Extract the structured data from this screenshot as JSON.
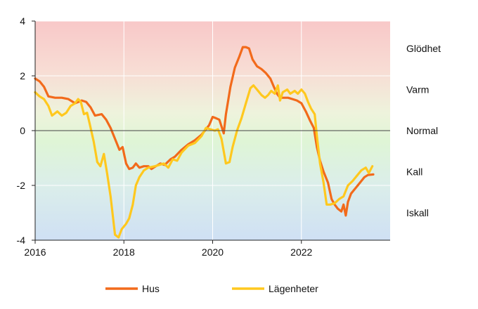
{
  "chart_data": {
    "type": "line",
    "xlim": [
      2016,
      2024
    ],
    "ylim": [
      -4,
      4
    ],
    "x_ticks": [
      "2016",
      "2018",
      "2020",
      "2022"
    ],
    "x_tick_values": [
      2016,
      2018,
      2020,
      2022
    ],
    "y_ticks": [
      "4",
      "2",
      "0",
      "-2",
      "-4"
    ],
    "y_tick_values": [
      4,
      2,
      0,
      -2,
      -4
    ],
    "grid": true,
    "legend_position": "bottom",
    "background_gradient": {
      "top": "#f8c8c8",
      "middle": "#dff5d6",
      "bottom": "#cfe0f4"
    },
    "zone_labels": [
      {
        "text": "Glödhet",
        "y": 3
      },
      {
        "text": "Varm",
        "y": 1.5
      },
      {
        "text": "Normal",
        "y": 0
      },
      {
        "text": "Kall",
        "y": -1.5
      },
      {
        "text": "Iskall",
        "y": -3
      }
    ],
    "series": [
      {
        "name": "Hus",
        "color": "#f26a1b",
        "points": [
          [
            2016.0,
            1.9
          ],
          [
            2016.1,
            1.8
          ],
          [
            2016.2,
            1.6
          ],
          [
            2016.3,
            1.25
          ],
          [
            2016.45,
            1.2
          ],
          [
            2016.6,
            1.2
          ],
          [
            2016.75,
            1.15
          ],
          [
            2016.9,
            1.0
          ],
          [
            2017.05,
            1.1
          ],
          [
            2017.15,
            1.05
          ],
          [
            2017.25,
            0.85
          ],
          [
            2017.35,
            0.55
          ],
          [
            2017.5,
            0.6
          ],
          [
            2017.6,
            0.4
          ],
          [
            2017.7,
            0.1
          ],
          [
            2017.8,
            -0.3
          ],
          [
            2017.9,
            -0.7
          ],
          [
            2017.97,
            -0.6
          ],
          [
            2018.05,
            -1.2
          ],
          [
            2018.12,
            -1.4
          ],
          [
            2018.2,
            -1.35
          ],
          [
            2018.27,
            -1.2
          ],
          [
            2018.35,
            -1.35
          ],
          [
            2018.45,
            -1.3
          ],
          [
            2018.55,
            -1.3
          ],
          [
            2018.62,
            -1.4
          ],
          [
            2018.72,
            -1.3
          ],
          [
            2018.82,
            -1.2
          ],
          [
            2018.92,
            -1.25
          ],
          [
            2019.05,
            -1.05
          ],
          [
            2019.15,
            -0.95
          ],
          [
            2019.3,
            -0.7
          ],
          [
            2019.45,
            -0.5
          ],
          [
            2019.6,
            -0.35
          ],
          [
            2019.75,
            -0.15
          ],
          [
            2019.85,
            0.05
          ],
          [
            2019.92,
            0.2
          ],
          [
            2020.0,
            0.5
          ],
          [
            2020.08,
            0.45
          ],
          [
            2020.15,
            0.4
          ],
          [
            2020.25,
            -0.1
          ],
          [
            2020.3,
            0.6
          ],
          [
            2020.4,
            1.6
          ],
          [
            2020.5,
            2.3
          ],
          [
            2020.6,
            2.7
          ],
          [
            2020.68,
            3.05
          ],
          [
            2020.75,
            3.05
          ],
          [
            2020.82,
            3.0
          ],
          [
            2020.9,
            2.6
          ],
          [
            2021.0,
            2.35
          ],
          [
            2021.1,
            2.25
          ],
          [
            2021.2,
            2.1
          ],
          [
            2021.3,
            1.9
          ],
          [
            2021.38,
            1.6
          ],
          [
            2021.45,
            1.35
          ],
          [
            2021.52,
            1.2
          ],
          [
            2021.6,
            1.2
          ],
          [
            2021.7,
            1.2
          ],
          [
            2021.8,
            1.15
          ],
          [
            2021.9,
            1.1
          ],
          [
            2022.0,
            1.0
          ],
          [
            2022.1,
            0.7
          ],
          [
            2022.2,
            0.35
          ],
          [
            2022.28,
            0.1
          ],
          [
            2022.35,
            -0.6
          ],
          [
            2022.42,
            -1.1
          ],
          [
            2022.5,
            -1.5
          ],
          [
            2022.6,
            -1.9
          ],
          [
            2022.68,
            -2.5
          ],
          [
            2022.75,
            -2.7
          ],
          [
            2022.82,
            -2.85
          ],
          [
            2022.9,
            -2.95
          ],
          [
            2022.95,
            -2.7
          ],
          [
            2023.0,
            -3.1
          ],
          [
            2023.05,
            -2.6
          ],
          [
            2023.12,
            -2.3
          ],
          [
            2023.22,
            -2.1
          ],
          [
            2023.32,
            -1.9
          ],
          [
            2023.42,
            -1.7
          ],
          [
            2023.5,
            -1.62
          ],
          [
            2023.62,
            -1.6
          ]
        ]
      },
      {
        "name": "Lägenheter",
        "color": "#ffc81e",
        "points": [
          [
            2016.0,
            1.4
          ],
          [
            2016.1,
            1.25
          ],
          [
            2016.2,
            1.15
          ],
          [
            2016.3,
            0.9
          ],
          [
            2016.38,
            0.55
          ],
          [
            2016.5,
            0.7
          ],
          [
            2016.6,
            0.55
          ],
          [
            2016.7,
            0.65
          ],
          [
            2016.8,
            0.9
          ],
          [
            2016.9,
            1.0
          ],
          [
            2016.97,
            1.15
          ],
          [
            2017.03,
            1.05
          ],
          [
            2017.1,
            0.6
          ],
          [
            2017.17,
            0.65
          ],
          [
            2017.23,
            0.25
          ],
          [
            2017.32,
            -0.4
          ],
          [
            2017.4,
            -1.15
          ],
          [
            2017.47,
            -1.3
          ],
          [
            2017.55,
            -0.85
          ],
          [
            2017.62,
            -1.55
          ],
          [
            2017.7,
            -2.4
          ],
          [
            2017.8,
            -3.8
          ],
          [
            2017.88,
            -3.9
          ],
          [
            2017.95,
            -3.6
          ],
          [
            2018.05,
            -3.4
          ],
          [
            2018.12,
            -3.2
          ],
          [
            2018.2,
            -2.7
          ],
          [
            2018.27,
            -2.0
          ],
          [
            2018.35,
            -1.7
          ],
          [
            2018.45,
            -1.45
          ],
          [
            2018.55,
            -1.35
          ],
          [
            2018.7,
            -1.3
          ],
          [
            2018.8,
            -1.25
          ],
          [
            2018.9,
            -1.2
          ],
          [
            2019.0,
            -1.35
          ],
          [
            2019.1,
            -1.05
          ],
          [
            2019.2,
            -1.1
          ],
          [
            2019.3,
            -0.8
          ],
          [
            2019.45,
            -0.55
          ],
          [
            2019.6,
            -0.45
          ],
          [
            2019.75,
            -0.2
          ],
          [
            2019.85,
            0.1
          ],
          [
            2019.95,
            0.05
          ],
          [
            2020.05,
            0.0
          ],
          [
            2020.12,
            0.05
          ],
          [
            2020.2,
            -0.3
          ],
          [
            2020.3,
            -1.2
          ],
          [
            2020.38,
            -1.15
          ],
          [
            2020.45,
            -0.6
          ],
          [
            2020.55,
            0.0
          ],
          [
            2020.65,
            0.45
          ],
          [
            2020.75,
            1.0
          ],
          [
            2020.85,
            1.55
          ],
          [
            2020.92,
            1.65
          ],
          [
            2021.0,
            1.5
          ],
          [
            2021.1,
            1.3
          ],
          [
            2021.18,
            1.2
          ],
          [
            2021.25,
            1.3
          ],
          [
            2021.32,
            1.45
          ],
          [
            2021.4,
            1.35
          ],
          [
            2021.47,
            1.65
          ],
          [
            2021.52,
            1.1
          ],
          [
            2021.58,
            1.4
          ],
          [
            2021.68,
            1.5
          ],
          [
            2021.75,
            1.35
          ],
          [
            2021.85,
            1.45
          ],
          [
            2021.92,
            1.35
          ],
          [
            2022.0,
            1.5
          ],
          [
            2022.08,
            1.35
          ],
          [
            2022.15,
            1.05
          ],
          [
            2022.22,
            0.8
          ],
          [
            2022.3,
            0.6
          ],
          [
            2022.35,
            -0.2
          ],
          [
            2022.42,
            -1.2
          ],
          [
            2022.5,
            -1.9
          ],
          [
            2022.57,
            -2.7
          ],
          [
            2022.65,
            -2.7
          ],
          [
            2022.75,
            -2.65
          ],
          [
            2022.85,
            -2.5
          ],
          [
            2022.95,
            -2.4
          ],
          [
            2023.05,
            -2.0
          ],
          [
            2023.15,
            -1.85
          ],
          [
            2023.25,
            -1.65
          ],
          [
            2023.35,
            -1.45
          ],
          [
            2023.45,
            -1.35
          ],
          [
            2023.52,
            -1.55
          ],
          [
            2023.6,
            -1.3
          ]
        ]
      }
    ]
  }
}
